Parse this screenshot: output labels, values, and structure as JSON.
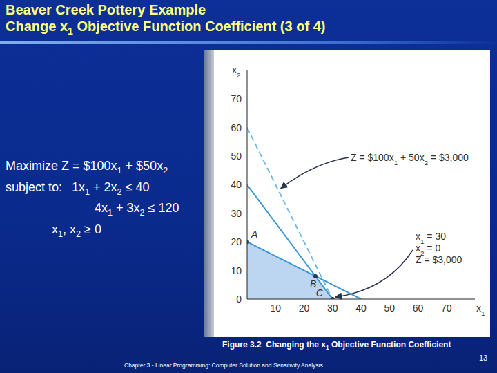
{
  "title": [
    "Beaver Creek Pottery Example",
    "Change x1 Objective Function Coefficient (3 of 4)"
  ],
  "model": {
    "objective": "Maximize Z = $100x1 + $50x2",
    "subject_to": "subject to:",
    "constraints": [
      "1x1 + 2x2 ≤ 40",
      "4x1 + 3x2 ≤ 120",
      "x1, x2 ≥ 0"
    ]
  },
  "caption": "Figure 3.2  Changing the x1 Objective Function Coefficient",
  "footer": "Chapter 3 - Linear Programming: Computer Solution and Sensitivity Analysis",
  "page": 13,
  "chart_data": {
    "type": "line",
    "xlabel": "x1",
    "ylabel": "x2",
    "xlim": [
      0,
      80
    ],
    "ylim": [
      0,
      80
    ],
    "xticks": [
      10,
      20,
      30,
      40,
      50,
      60,
      70
    ],
    "yticks": [
      0,
      10,
      20,
      30,
      40,
      50,
      60,
      70
    ],
    "series": [
      {
        "x": [
          0,
          40
        ],
        "values": [
          20,
          0
        ],
        "color": "#3a97d4",
        "line_style": "solid"
      },
      {
        "x": [
          0,
          30
        ],
        "values": [
          40,
          0
        ],
        "color": "#3a97d4",
        "line_style": "solid"
      },
      {
        "x": [
          0,
          30
        ],
        "values": [
          60,
          0
        ],
        "color": "#74b9e6",
        "line_style": "dashed"
      }
    ],
    "feasible_region": {
      "x": [
        0,
        24,
        30
      ],
      "values": [
        20,
        8,
        0
      ],
      "color": "#bcd5f0"
    },
    "points": [
      {
        "label": "A",
        "x": 0,
        "y": 20
      },
      {
        "label": "B",
        "x": 24,
        "y": 8
      },
      {
        "label": "C",
        "x": 30,
        "y": 0
      }
    ],
    "annotations": [
      {
        "text": [
          "Z = $100x1 + 50x2 = $3,000"
        ]
      },
      {
        "text": [
          "x1 = 30",
          "x2 = 0",
          "Z = $3,000"
        ]
      }
    ]
  }
}
